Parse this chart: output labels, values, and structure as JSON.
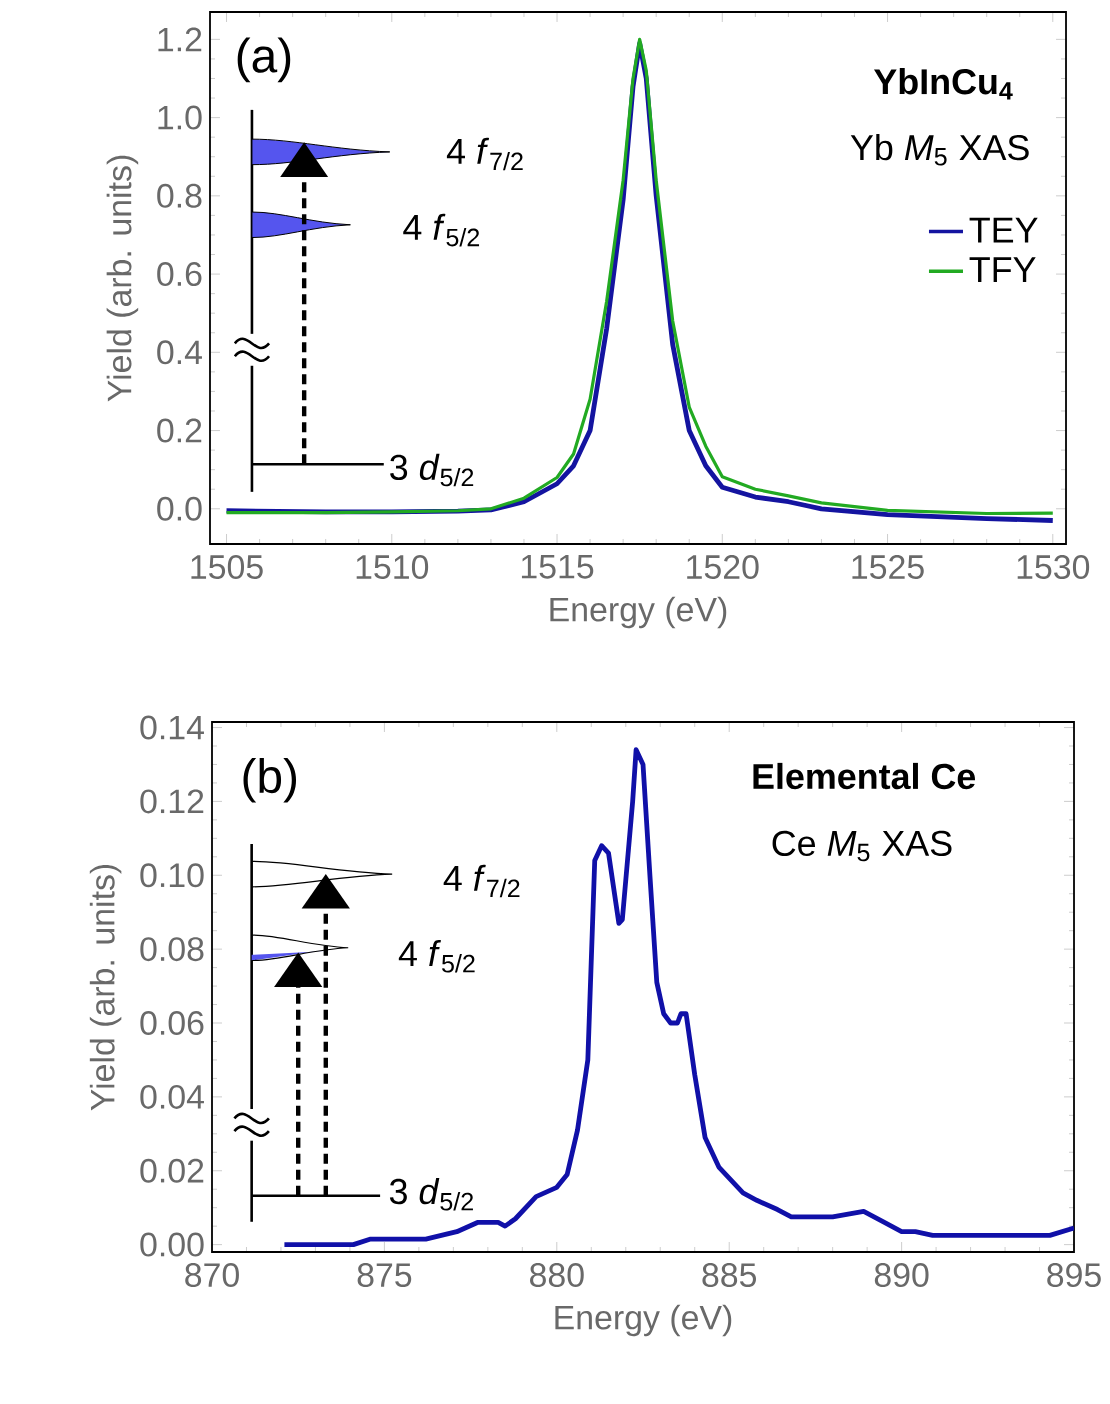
{
  "chart_data": [
    {
      "type": "line",
      "xlabel": "Energy (eV)",
      "ylabel": "Yield (arb. units)",
      "xlim": [
        1504.5,
        1530.4
      ],
      "ylim": [
        -0.09,
        1.27
      ],
      "xticks": [
        1505,
        1510,
        1515,
        1520,
        1525,
        1530
      ],
      "yticks": [
        {
          "value": 0,
          "label": "0.0"
        },
        {
          "value": 0.2,
          "label": "0.2"
        },
        {
          "value": 0.4,
          "label": "0.4"
        },
        {
          "value": 0.6,
          "label": "0.6"
        },
        {
          "value": 0.8,
          "label": "0.8"
        },
        {
          "value": 1.0,
          "label": "1.0"
        },
        {
          "value": 1.2,
          "label": "1.2"
        }
      ],
      "legend": "right",
      "marker": "none",
      "line_style": "solid",
      "annotations": [
        "(a)",
        "YbInCu$_{4}$",
        "Yb *M*$_{5}$ XAS",
        "4 *f*$_{7/2}$",
        "4 *f*$_{5/2}$",
        "3 *d*$_{5/2}$"
      ],
      "x": [
        1505,
        1508,
        1510,
        1512,
        1513,
        1514,
        1515,
        1515.5,
        1516,
        1516.5,
        1517,
        1517.3,
        1517.5,
        1517.7,
        1518,
        1518.5,
        1519,
        1519.5,
        1520,
        1521,
        1522,
        1523,
        1525,
        1528,
        1530
      ],
      "series": [
        {
          "name": "TEY",
          "color": "#1414a0",
          "values": [
            -0.005,
            -0.008,
            -0.008,
            -0.006,
            -0.003,
            0.018,
            0.064,
            0.11,
            0.2,
            0.46,
            0.79,
            1.08,
            1.19,
            1.1,
            0.8,
            0.42,
            0.2,
            0.11,
            0.055,
            0.03,
            0.018,
            0.0,
            -0.015,
            -0.025,
            -0.03
          ]
        },
        {
          "name": "TFY",
          "color": "#22aa22",
          "values": [
            -0.01,
            -0.01,
            -0.008,
            -0.005,
            0.0,
            0.027,
            0.08,
            0.14,
            0.28,
            0.53,
            0.84,
            1.1,
            1.2,
            1.12,
            0.84,
            0.48,
            0.26,
            0.16,
            0.082,
            0.05,
            0.033,
            0.015,
            -0.004,
            -0.012,
            -0.011
          ]
        }
      ]
    },
    {
      "type": "line",
      "xlabel": "Energy (eV)",
      "ylabel": "Yield (arb. units)",
      "xlim": [
        870,
        895
      ],
      "ylim": [
        -0.002,
        0.1415
      ],
      "xticks": [
        870,
        875,
        880,
        885,
        890,
        895
      ],
      "yticks": [
        {
          "value": 0,
          "label": "0.00"
        },
        {
          "value": 0.02,
          "label": "0.02"
        },
        {
          "value": 0.04,
          "label": "0.04"
        },
        {
          "value": 0.06,
          "label": "0.06"
        },
        {
          "value": 0.08,
          "label": "0.08"
        },
        {
          "value": 0.1,
          "label": "0.10"
        },
        {
          "value": 0.12,
          "label": "0.12"
        },
        {
          "value": 0.14,
          "label": "0.14"
        }
      ],
      "marker": "none",
      "line_style": "solid",
      "annotations": [
        "(b)",
        "Elemental Ce",
        "Ce *M*$_{5}$ XAS",
        "4 *f*$_{7/2}$",
        "4 *f*$_{5/2}$",
        "3 *d*$_{5/2}$"
      ],
      "x": [
        872.1,
        874.1,
        874.6,
        876.2,
        877.1,
        877.7,
        878.3,
        878.5,
        878.8,
        879.4,
        880.0,
        880.3,
        880.6,
        880.9,
        881.1,
        881.3,
        881.5,
        881.8,
        881.9,
        882.2,
        882.3,
        882.5,
        882.7,
        882.9,
        883.1,
        883.3,
        883.5,
        883.6,
        883.75,
        884.0,
        884.3,
        884.7,
        885.4,
        885.8,
        886.4,
        886.8,
        888.0,
        888.9,
        889.5,
        890.0,
        890.4,
        890.9,
        894.3,
        895.0
      ],
      "series": [
        {
          "color": "#1010a8",
          "values": [
            0.0,
            0.0,
            0.0015,
            0.0015,
            0.0035,
            0.006,
            0.006,
            0.005,
            0.007,
            0.013,
            0.0155,
            0.019,
            0.031,
            0.05,
            0.104,
            0.108,
            0.106,
            0.087,
            0.088,
            0.12,
            0.134,
            0.13,
            0.1,
            0.071,
            0.0625,
            0.06,
            0.06,
            0.0625,
            0.0625,
            0.046,
            0.029,
            0.021,
            0.014,
            0.012,
            0.0095,
            0.0075,
            0.0075,
            0.009,
            0.006,
            0.0035,
            0.0035,
            0.0025,
            0.0025,
            0.0045
          ]
        }
      ]
    }
  ]
}
